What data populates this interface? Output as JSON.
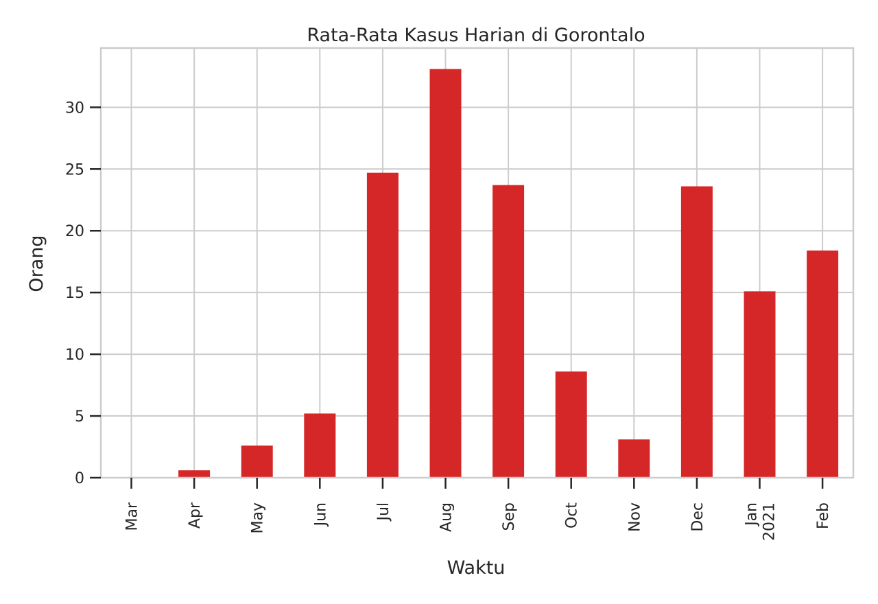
{
  "chart_data": {
    "type": "bar",
    "title": "Rata-Rata Kasus Harian di Gorontalo",
    "xlabel": "Waktu",
    "ylabel": "Orang",
    "categories": [
      [
        "Mar"
      ],
      [
        "Apr"
      ],
      [
        "May"
      ],
      [
        "Jun"
      ],
      [
        "Jul"
      ],
      [
        "Aug"
      ],
      [
        "Sep"
      ],
      [
        "Oct"
      ],
      [
        "Nov"
      ],
      [
        "Dec"
      ],
      [
        "Jan",
        "2021"
      ],
      [
        "Feb"
      ]
    ],
    "values": [
      0.0,
      0.6,
      2.6,
      5.2,
      24.7,
      33.1,
      23.7,
      8.6,
      3.1,
      23.6,
      15.1,
      18.4
    ],
    "yticks": [
      0,
      5,
      10,
      15,
      20,
      25,
      30
    ],
    "ylim": [
      0,
      34.8
    ],
    "grid": true,
    "bar_color": "#d62728"
  }
}
